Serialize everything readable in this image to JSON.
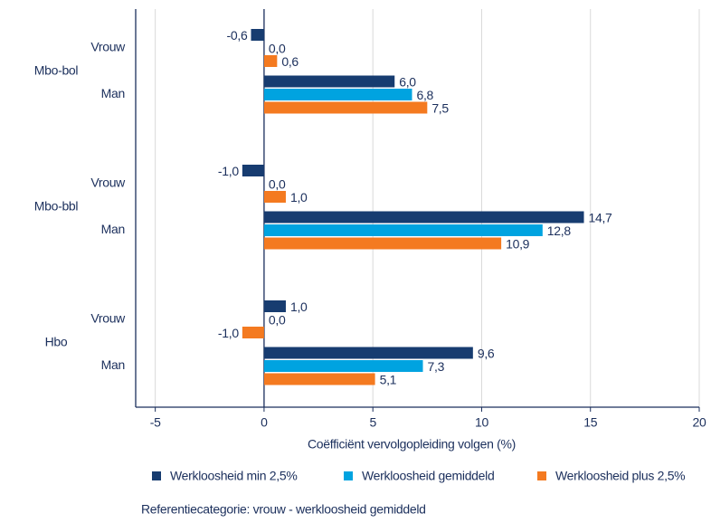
{
  "chart_data": {
    "type": "hbar",
    "groups": [
      "Mbo-bol",
      "Mbo-bbl",
      "Hbo"
    ],
    "categories": [
      "Vrouw",
      "Man",
      "Vrouw",
      "Man",
      "Vrouw",
      "Man"
    ],
    "series": [
      {
        "name": "Werkloosheid min 2,5%",
        "color": "#173c70",
        "values": [
          -0.6,
          6.0,
          -1.0,
          14.7,
          1.0,
          9.6
        ],
        "value_labels": [
          "-0,6",
          "6,0",
          "-1,0",
          "14,7",
          "1,0",
          "9,6"
        ]
      },
      {
        "name": "Werkloosheid gemiddeld",
        "color": "#00a3e0",
        "values": [
          0.0,
          6.8,
          0.0,
          12.8,
          0.0,
          7.3
        ],
        "value_labels": [
          "0,0",
          "6,8",
          "0,0",
          "12,8",
          "0,0",
          "7,3"
        ]
      },
      {
        "name": "Werkloosheid plus 2,5%",
        "color": "#f47a20",
        "values": [
          0.6,
          7.5,
          1.0,
          10.9,
          -1.0,
          5.1
        ],
        "value_labels": [
          "0,6",
          "7,5",
          "1,0",
          "10,9",
          "-1,0",
          "5,1"
        ]
      }
    ],
    "xlabel": "Coëfficiënt vervolgopleiding volgen (%)",
    "xlim": [
      -5.9,
      20
    ],
    "xticks": [
      -5,
      0,
      5,
      10,
      15,
      20
    ],
    "grid": true,
    "legend": "bottom",
    "footnote": "Referentiecategorie: vrouw - werkloosheid gemiddeld"
  }
}
